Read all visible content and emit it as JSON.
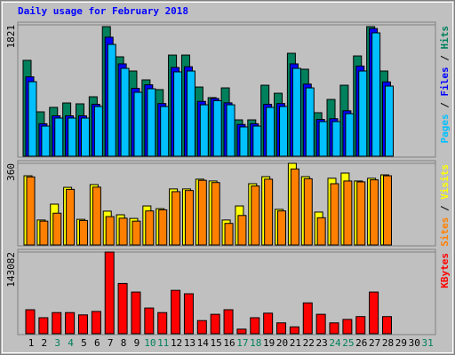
{
  "chart_data": [
    {
      "type": "bar",
      "title": "Daily usage for February 2018",
      "title_color": "#0000ff",
      "ylim": [
        0,
        1821
      ],
      "yticks": [
        1821
      ],
      "legend_separator": " / ",
      "series": [
        {
          "name": "Hits",
          "color": "#00805c",
          "values": [
            1329,
            615,
            677,
            738,
            726,
            824,
            1796,
            1378,
            1181,
            1058,
            923,
            1402,
            1402,
            959,
            812,
            947,
            504,
            504,
            984,
            873,
            1427,
            1206,
            603,
            787,
            984,
            1390,
            1796,
            1181,
            null,
            null,
            null
          ]
        },
        {
          "name": "Files",
          "color": "#0000ff",
          "values": [
            1100,
            450,
            560,
            560,
            560,
            720,
            1650,
            1280,
            940,
            990,
            730,
            1230,
            1240,
            760,
            800,
            740,
            440,
            450,
            720,
            730,
            1280,
            1000,
            510,
            520,
            630,
            1250,
            1770,
            1030,
            null,
            null,
            null
          ]
        },
        {
          "name": "Pages",
          "color": "#00c0ff",
          "values": [
            1033,
            418,
            529,
            529,
            529,
            689,
            1550,
            1218,
            886,
            935,
            689,
            1169,
            1181,
            713,
            770,
            713,
            406,
            418,
            677,
            689,
            1218,
            947,
            480,
            480,
            590,
            1181,
            1710,
            972,
            null,
            null,
            null
          ]
        }
      ]
    },
    {
      "type": "bar",
      "ylim": [
        0,
        360
      ],
      "yticks": [
        360
      ],
      "legend_separator": " / ",
      "series": [
        {
          "name": "Visits",
          "color": "#ffff00",
          "values": [
            305,
            110,
            180,
            254,
            113,
            266,
            149,
            133,
            117,
            172,
            160,
            247,
            247,
            290,
            282,
            110,
            172,
            270,
            301,
            157,
            360,
            301,
            145,
            294,
            317,
            282,
            294,
            309,
            null,
            null,
            null
          ]
        },
        {
          "name": "Sites",
          "color": "#ff8000",
          "values": [
            300,
            105,
            140,
            245,
            108,
            255,
            125,
            118,
            105,
            150,
            155,
            235,
            240,
            285,
            275,
            95,
            130,
            260,
            290,
            150,
            335,
            292,
            120,
            270,
            282,
            278,
            287,
            305,
            null,
            null,
            null
          ]
        }
      ]
    },
    {
      "type": "bar",
      "ylim": [
        0,
        143082
      ],
      "yticks": [
        143082
      ],
      "categories": [
        "1",
        "2",
        "3",
        "4",
        "5",
        "6",
        "7",
        "8",
        "9",
        "10",
        "11",
        "12",
        "13",
        "14",
        "15",
        "16",
        "17",
        "18",
        "19",
        "20",
        "21",
        "22",
        "23",
        "24",
        "25",
        "26",
        "27",
        "28",
        "29",
        "30",
        "31"
      ],
      "category_colors": [
        "#000000",
        "#000000",
        "#00805c",
        "#00805c",
        "#000000",
        "#000000",
        "#000000",
        "#000000",
        "#000000",
        "#00805c",
        "#00805c",
        "#000000",
        "#000000",
        "#000000",
        "#000000",
        "#000000",
        "#00805c",
        "#00805c",
        "#000000",
        "#000000",
        "#000000",
        "#000000",
        "#000000",
        "#00805c",
        "#00805c",
        "#000000",
        "#000000",
        "#000000",
        "#000000",
        "#000000",
        "#00805c"
      ],
      "series": [
        {
          "name": "KBytes",
          "color": "#ff0000",
          "values": [
            42000,
            28000,
            37000,
            37000,
            33000,
            39000,
            143082,
            88000,
            73000,
            45000,
            37000,
            76000,
            70000,
            23000,
            34000,
            42000,
            8000,
            28000,
            36000,
            19000,
            12000,
            54000,
            34000,
            19000,
            25000,
            30000,
            73000,
            30000,
            null,
            null,
            null
          ]
        }
      ]
    }
  ]
}
